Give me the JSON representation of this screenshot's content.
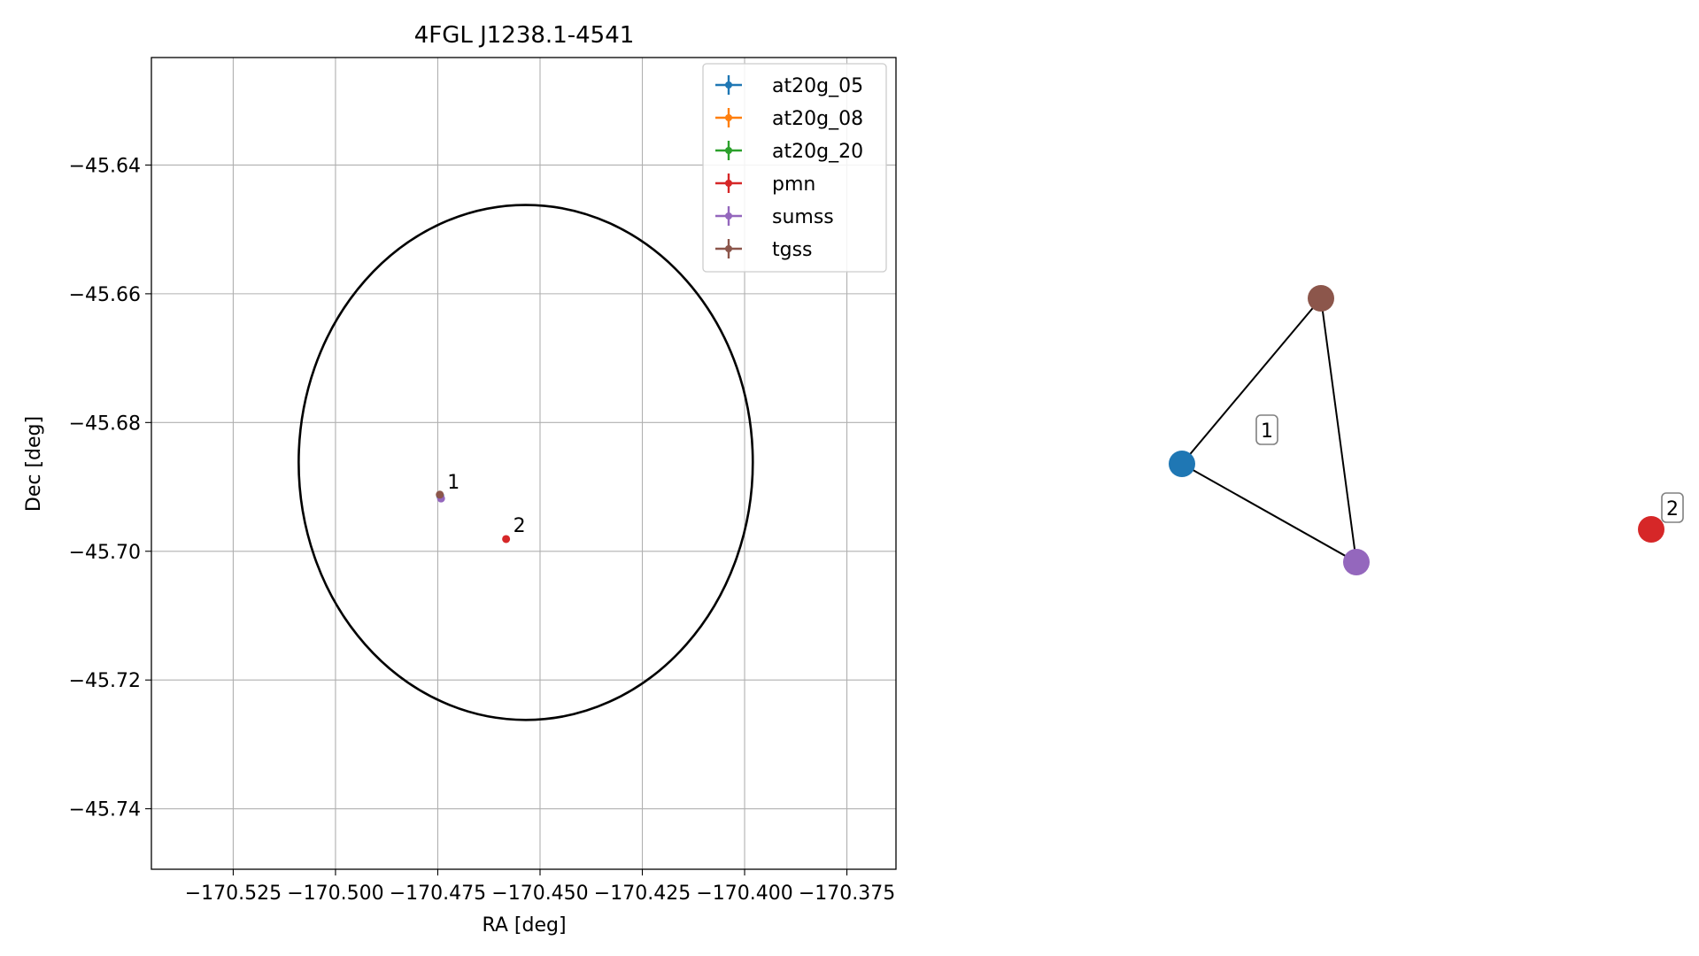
{
  "chart_data": [
    {
      "type": "scatter",
      "title": "4FGL J1238.1-4541",
      "xlabel": "RA [deg]",
      "ylabel": "Dec [deg]",
      "xlim": [
        -170.545,
        -170.363
      ],
      "ylim": [
        -45.7494,
        -45.6233
      ],
      "xticks": [
        -170.525,
        -170.5,
        -170.475,
        -170.45,
        -170.425,
        -170.4,
        -170.375
      ],
      "xtick_labels": [
        "−170.525",
        "−170.500",
        "−170.475",
        "−170.450",
        "−170.425",
        "−170.400",
        "−170.375"
      ],
      "yticks": [
        -45.64,
        -45.66,
        -45.68,
        -45.7,
        -45.72,
        -45.74
      ],
      "ytick_labels": [
        "−45.64",
        "−45.66",
        "−45.68",
        "−45.70",
        "−45.72",
        "−45.74"
      ],
      "grid": true,
      "legend_position": "top-right",
      "series": [
        {
          "name": "at20g_05",
          "color": "#1f77b4",
          "points": [
            {
              "x": -170.4744,
              "y": -45.6914
            }
          ]
        },
        {
          "name": "at20g_08",
          "color": "#ff7f0e",
          "points": []
        },
        {
          "name": "at20g_20",
          "color": "#2ca02c",
          "points": []
        },
        {
          "name": "pmn",
          "color": "#d62728",
          "points": [
            {
              "x": -170.4583,
              "y": -45.6981
            }
          ]
        },
        {
          "name": "sumss",
          "color": "#9467bd",
          "points": [
            {
              "x": -170.4742,
              "y": -45.6918
            }
          ]
        },
        {
          "name": "tgss",
          "color": "#8c564b",
          "points": [
            {
              "x": -170.4745,
              "y": -45.6912
            }
          ]
        }
      ],
      "annotations": [
        {
          "text": "1",
          "x": -170.4744,
          "y": -45.6914
        },
        {
          "text": "2",
          "x": -170.4583,
          "y": -45.6981
        }
      ],
      "ellipse": {
        "center": [
          -170.4535,
          -45.6862
        ],
        "half_width": 0.0555,
        "half_height": 0.04,
        "color": "#000000"
      }
    },
    {
      "type": "diagram",
      "nodes": [
        {
          "id": "at20g_05",
          "color": "#1f77b4"
        },
        {
          "id": "tgss",
          "color": "#8c564b"
        },
        {
          "id": "sumss",
          "color": "#9467bd"
        },
        {
          "id": "pmn",
          "color": "#d62728"
        }
      ],
      "edges": [
        [
          "at20g_05",
          "tgss"
        ],
        [
          "at20g_05",
          "sumss"
        ],
        [
          "tgss",
          "sumss"
        ]
      ],
      "group_labels": [
        "1",
        "2"
      ]
    }
  ]
}
